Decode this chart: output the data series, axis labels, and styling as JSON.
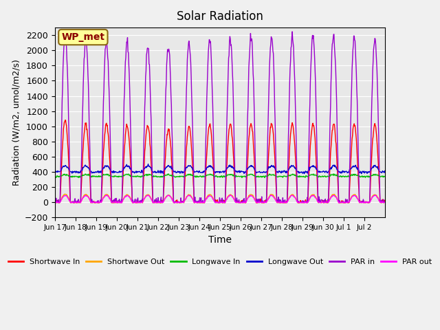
{
  "title": "Solar Radiation",
  "xlabel": "Time",
  "ylabel": "Radiation (W/m2, umol/m2/s)",
  "ylim": [
    -200,
    2300
  ],
  "yticks": [
    -200,
    0,
    200,
    400,
    600,
    800,
    1000,
    1200,
    1400,
    1600,
    1800,
    2000,
    2200
  ],
  "xtick_labels": [
    "Jun 17",
    "Jun 18",
    "Jun 19",
    "Jun 20",
    "Jun 21",
    "Jun 22",
    "Jun 23",
    "Jun 24",
    "Jun 25",
    "Jun 26",
    "Jun 27",
    "Jun 28",
    "Jun 29",
    "Jun 30",
    "Jul 1",
    "Jul 2"
  ],
  "annotation_text": "WP_met",
  "annotation_color": "#8B0000",
  "annotation_bg": "#FFFF99",
  "bg_color": "#E8E8E8",
  "fig_bg_color": "#F0F0F0",
  "series": [
    {
      "label": "Shortwave In",
      "color": "#FF0000"
    },
    {
      "label": "Shortwave Out",
      "color": "#FFA500"
    },
    {
      "label": "Longwave In",
      "color": "#00BB00"
    },
    {
      "label": "Longwave Out",
      "color": "#0000CC"
    },
    {
      "label": "PAR in",
      "color": "#9900CC"
    },
    {
      "label": "PAR out",
      "color": "#FF00FF"
    }
  ],
  "n_days": 16,
  "samples_per_day": 48,
  "sw_in_peaks": [
    1090,
    1030,
    1030,
    1010,
    1010,
    970,
    990,
    1020,
    1030,
    1040,
    1040,
    1030,
    1030,
    1030,
    1030,
    1030
  ],
  "par_in_peaks": [
    2200,
    2150,
    2120,
    2100,
    2050,
    2040,
    2090,
    2120,
    2160,
    2180,
    2190,
    2190,
    2190,
    2180,
    2170,
    2170
  ]
}
